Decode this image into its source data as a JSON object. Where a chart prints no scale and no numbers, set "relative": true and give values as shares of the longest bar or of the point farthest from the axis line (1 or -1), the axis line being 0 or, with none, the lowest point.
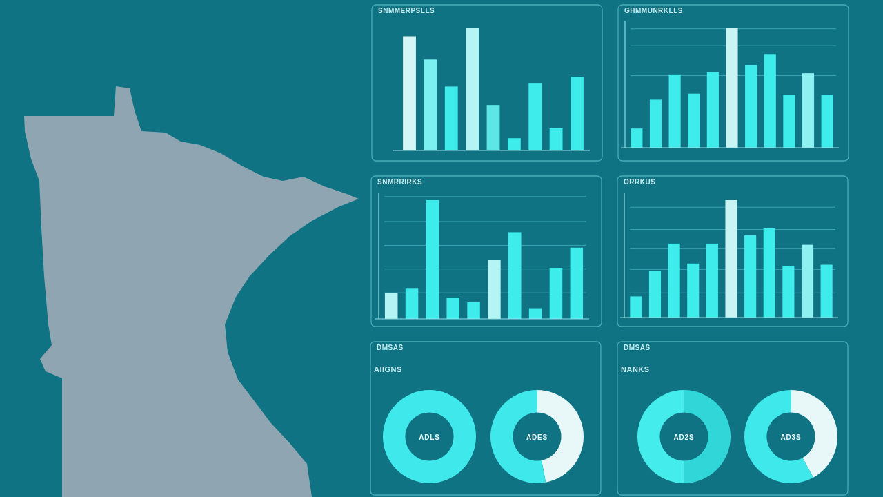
{
  "chart_data": [
    {
      "type": "bar",
      "title": "SNMMERPSLLS",
      "relative": true,
      "categories": [
        null,
        null,
        null,
        null,
        null,
        null,
        null,
        null,
        null
      ],
      "values": [
        0.93,
        0.74,
        0.52,
        1,
        0.37,
        0.1,
        0.55,
        0.18,
        0.6
      ],
      "colors": [
        "#d4f6f6",
        "#7af0f0",
        "#3fecec",
        "#b4f4f4",
        "#5ee6e6",
        "#3fecec",
        "#3fecec",
        "#3fecec",
        "#3fecec"
      ]
    },
    {
      "type": "bar",
      "title": "GHMMUNRKLLS",
      "relative": true,
      "ref_lines": [
        {
          "axis": "y",
          "value": 0.99,
          "color": "#4fb9c4"
        },
        {
          "axis": "y",
          "value": 0.85,
          "color": "#4fb9c4"
        },
        {
          "axis": "y",
          "value": 0.6,
          "color": "#4fb9c4"
        }
      ],
      "categories": [
        null,
        null,
        null,
        null,
        null,
        null,
        null,
        null,
        null,
        null,
        null
      ],
      "values": [
        0.16,
        0.4,
        0.61,
        0.45,
        0.63,
        1,
        0.69,
        0.78,
        0.44,
        0.62,
        0.44
      ],
      "colors": [
        "#3fecec",
        "#3fecec",
        "#3fecec",
        "#3fecec",
        "#3fecec",
        "#c8f4f4",
        "#3fecec",
        "#3fecec",
        "#3fecec",
        "#8ef0f0",
        "#3fecec"
      ]
    },
    {
      "type": "bar",
      "title": "SNMRRIRKS",
      "relative": true,
      "ref_lines": [
        {
          "axis": "y",
          "value": 1.03,
          "color": "#4fb9c4"
        },
        {
          "axis": "y",
          "value": 0.82,
          "color": "#4fb9c4"
        },
        {
          "axis": "y",
          "value": 0.62,
          "color": "#4fb9c4"
        },
        {
          "axis": "y",
          "value": 0.42,
          "color": "#4fb9c4"
        },
        {
          "axis": "y",
          "value": 0.22,
          "color": "#4fb9c4"
        }
      ],
      "categories": [
        null,
        null,
        null,
        null,
        null,
        null,
        null,
        null,
        null,
        null
      ],
      "values": [
        0.22,
        0.26,
        1,
        0.18,
        0.14,
        0.5,
        0.73,
        0.09,
        0.43,
        0.6
      ],
      "colors": [
        "#b4f4f4",
        "#3fecec",
        "#3fecec",
        "#3fecec",
        "#3fecec",
        "#b4f4f4",
        "#3fecec",
        "#3fecec",
        "#3fecec",
        "#3fecec"
      ]
    },
    {
      "type": "bar",
      "title": "ORRKUS",
      "relative": true,
      "ref_lines": [
        {
          "axis": "y",
          "value": 0.94,
          "color": "#4fb9c4"
        },
        {
          "axis": "y",
          "value": 0.75,
          "color": "#4fb9c4"
        },
        {
          "axis": "y",
          "value": 0.59,
          "color": "#4fb9c4"
        },
        {
          "axis": "y",
          "value": 0.41,
          "color": "#4fb9c4"
        },
        {
          "axis": "y",
          "value": 0.21,
          "color": "#4fb9c4"
        }
      ],
      "categories": [
        null,
        null,
        null,
        null,
        null,
        null,
        null,
        null,
        null,
        null,
        null
      ],
      "values": [
        0.18,
        0.4,
        0.63,
        0.46,
        0.63,
        1,
        0.7,
        0.76,
        0.44,
        0.62,
        0.45
      ],
      "colors": [
        "#3fecec",
        "#3fecec",
        "#3fecec",
        "#3fecec",
        "#3fecec",
        "#c8f4f4",
        "#3fecec",
        "#3fecec",
        "#3fecec",
        "#8ef0f0",
        "#3fecec"
      ]
    },
    {
      "type": "donut",
      "title": "DMSAS",
      "subtitle": "AIIGNS",
      "categories": [
        null
      ],
      "values": [
        100
      ],
      "colors": [
        "#3fe8ea"
      ],
      "annotations": [
        "ADLS"
      ]
    },
    {
      "type": "donut",
      "categories": [
        null,
        null
      ],
      "values": [
        47,
        53
      ],
      "colors": [
        "#e8f8f8",
        "#3fe8ea"
      ],
      "annotations": [
        "ADES"
      ]
    },
    {
      "type": "donut",
      "title": "DMSAS",
      "subtitle": "NANKS",
      "categories": [
        null,
        null
      ],
      "values": [
        50,
        50
      ],
      "colors": [
        "#30d6d8",
        "#44ecec"
      ],
      "annotations": [
        "AD2S"
      ]
    },
    {
      "type": "donut",
      "categories": [
        null,
        null
      ],
      "values": [
        42,
        58
      ],
      "colors": [
        "#e8f8f8",
        "#3fe8ea"
      ],
      "annotations": [
        "AD3S"
      ]
    }
  ]
}
